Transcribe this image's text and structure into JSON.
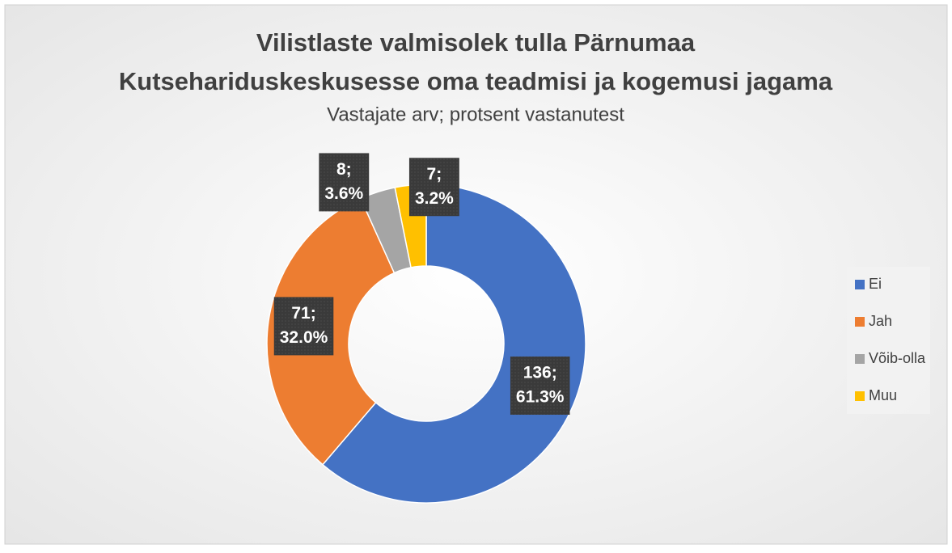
{
  "chart_data": {
    "type": "donut",
    "title": [
      "Vilistlaste valmisolek tulla Pärnumaa",
      "Kutsehariduskeskusesse oma teadmisi ja kogemusi jagama"
    ],
    "subtitle": "Vastajate arv; protsent vastanutest",
    "categories": [
      "Ei",
      "Jah",
      "Võib-olla",
      "Muu"
    ],
    "values": [
      136,
      71,
      8,
      7
    ],
    "value_labels": [
      [
        "136;",
        "61.3%"
      ],
      [
        "71;",
        "32.0%"
      ],
      [
        "8;",
        "3.6%"
      ],
      [
        "7;",
        "3.2%"
      ]
    ],
    "colors": [
      "#4472c4",
      "#ed7d31",
      "#a5a5a5",
      "#ffc000"
    ],
    "legend": "right"
  }
}
